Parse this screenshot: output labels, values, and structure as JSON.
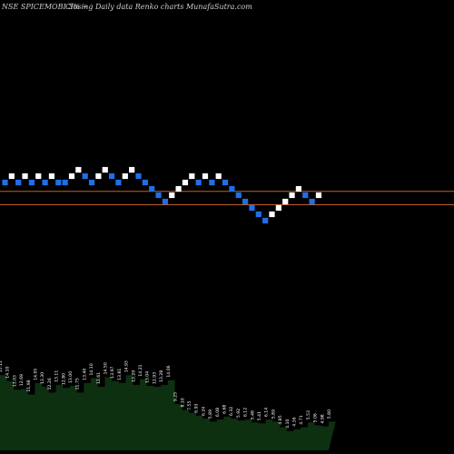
{
  "header": {
    "symbol": "NSE SPICEMOBI 3% ~",
    "description": "Closing Daily data  Renko  charts MunafaSutra.com"
  },
  "colors": {
    "background": "#000000",
    "up_brick": "#ffffff",
    "down_brick": "#1e6fe8",
    "reference_line": "#c0602a",
    "volume_fill": "#0d3010",
    "volume_label": "#ffffff"
  },
  "chart_data": [
    {
      "type": "renko",
      "bricks": [
        {
          "level": 3,
          "dir": "down"
        },
        {
          "level": 4,
          "dir": "up"
        },
        {
          "level": 3,
          "dir": "down"
        },
        {
          "level": 4,
          "dir": "up"
        },
        {
          "level": 3,
          "dir": "down"
        },
        {
          "level": 4,
          "dir": "up"
        },
        {
          "level": 3,
          "dir": "down"
        },
        {
          "level": 4,
          "dir": "up"
        },
        {
          "level": 3,
          "dir": "down"
        },
        {
          "level": 3,
          "dir": "down"
        },
        {
          "level": 4,
          "dir": "up"
        },
        {
          "level": 5,
          "dir": "up"
        },
        {
          "level": 4,
          "dir": "down"
        },
        {
          "level": 3,
          "dir": "down"
        },
        {
          "level": 4,
          "dir": "up"
        },
        {
          "level": 5,
          "dir": "up"
        },
        {
          "level": 4,
          "dir": "down"
        },
        {
          "level": 3,
          "dir": "down"
        },
        {
          "level": 4,
          "dir": "up"
        },
        {
          "level": 5,
          "dir": "up"
        },
        {
          "level": 4,
          "dir": "down"
        },
        {
          "level": 3,
          "dir": "down"
        },
        {
          "level": 2,
          "dir": "down"
        },
        {
          "level": 1,
          "dir": "down"
        },
        {
          "level": 0,
          "dir": "down"
        },
        {
          "level": 1,
          "dir": "up"
        },
        {
          "level": 2,
          "dir": "up"
        },
        {
          "level": 3,
          "dir": "up"
        },
        {
          "level": 4,
          "dir": "up"
        },
        {
          "level": 3,
          "dir": "down"
        },
        {
          "level": 4,
          "dir": "up"
        },
        {
          "level": 3,
          "dir": "down"
        },
        {
          "level": 4,
          "dir": "up"
        },
        {
          "level": 3,
          "dir": "down"
        },
        {
          "level": 2,
          "dir": "down"
        },
        {
          "level": 1,
          "dir": "down"
        },
        {
          "level": 0,
          "dir": "down"
        },
        {
          "level": -1,
          "dir": "down"
        },
        {
          "level": -2,
          "dir": "down"
        },
        {
          "level": -3,
          "dir": "down"
        },
        {
          "level": -2,
          "dir": "up"
        },
        {
          "level": -1,
          "dir": "up"
        },
        {
          "level": 0,
          "dir": "up"
        },
        {
          "level": 1,
          "dir": "up"
        },
        {
          "level": 2,
          "dir": "up"
        },
        {
          "level": 1,
          "dir": "down"
        },
        {
          "level": 0,
          "dir": "down"
        },
        {
          "level": 1,
          "dir": "up"
        }
      ],
      "reference_lines": [
        1.6,
        -0.5
      ],
      "volume_labels": [
        "15.11",
        "14.10",
        "13.03",
        "12.69",
        "11.98",
        "14.05",
        "13.30",
        "12.26",
        "13.11",
        "12.80",
        "13.00",
        "11.75",
        "13.40",
        "14.10",
        "12.61",
        "14.50",
        "13.97",
        "13.81",
        "14.93",
        "13.20",
        "14.21",
        "13.04",
        "12.93",
        "13.28",
        "14.06",
        "9.25",
        "8.10",
        "7.55",
        "6.93",
        "6.24",
        "5.89",
        "6.08",
        "6.68",
        "6.32",
        "5.92",
        "6.12",
        "5.48",
        "5.41",
        "6.14",
        "5.89",
        "4.85",
        "4.10",
        "4.36",
        "4.71",
        "5.53",
        "5.06",
        "4.98",
        "5.80"
      ],
      "volume_heights": [
        0.78,
        0.72,
        0.63,
        0.64,
        0.58,
        0.7,
        0.66,
        0.6,
        0.68,
        0.65,
        0.67,
        0.6,
        0.7,
        0.75,
        0.66,
        0.76,
        0.72,
        0.7,
        0.78,
        0.68,
        0.74,
        0.67,
        0.66,
        0.68,
        0.73,
        0.48,
        0.42,
        0.39,
        0.36,
        0.33,
        0.3,
        0.32,
        0.35,
        0.33,
        0.31,
        0.32,
        0.29,
        0.28,
        0.32,
        0.3,
        0.24,
        0.2,
        0.22,
        0.24,
        0.29,
        0.26,
        0.25,
        0.3
      ]
    }
  ]
}
